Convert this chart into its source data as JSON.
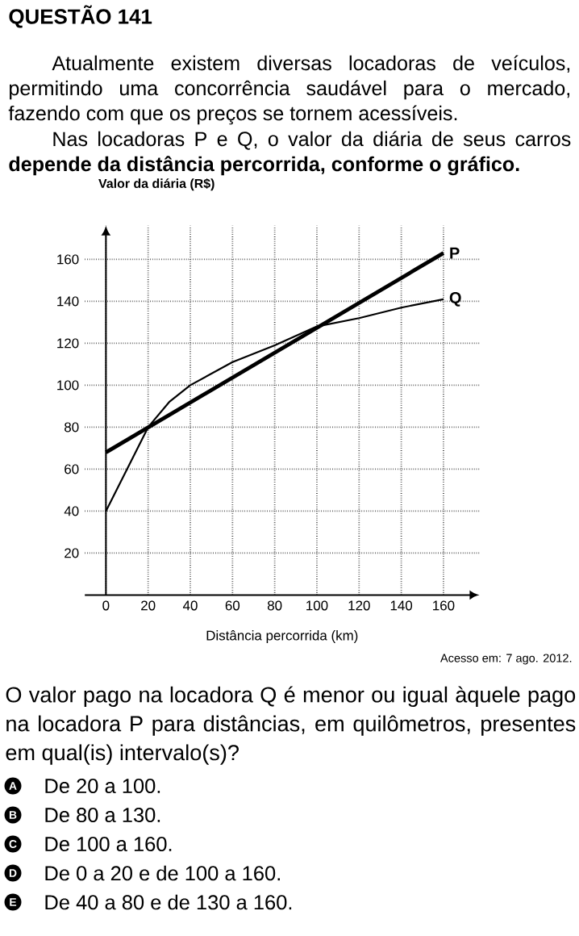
{
  "chart_data": {
    "type": "line",
    "title": "QUESTÃO 141",
    "xlabel": "Distância percorrida (km)",
    "ylabel": "Valor da diária (R$)",
    "xlim": [
      -10,
      177
    ],
    "ylim": [
      0,
      176
    ],
    "xticks": [
      0,
      20,
      40,
      60,
      80,
      100,
      120,
      140,
      160
    ],
    "yticks": [
      20,
      40,
      60,
      80,
      100,
      120,
      140,
      160
    ],
    "grid": true,
    "series": [
      {
        "name": "P",
        "color": "#000000",
        "x": [
          0,
          160
        ],
        "values": [
          68,
          163
        ]
      },
      {
        "name": "Q",
        "color": "#000000",
        "x": [
          0,
          10,
          20,
          30,
          40,
          60,
          80,
          100,
          120,
          140,
          160
        ],
        "values": [
          40,
          60,
          80,
          92,
          100,
          111,
          119,
          128,
          132,
          137,
          141
        ]
      }
    ],
    "annotations": [
      "Atualmente existem diversas locadoras de veículos, permitindo uma concorrência saudável para o mercado, fazendo com que os preços se tornem acessíveis.",
      "Nas locadoras P e Q, o valor da diária de seus carros **depende da distância percorrida, conforme o gráfico.**",
      "Acesso em: 7 ago. 2012.",
      "O valor pago na locadora Q é menor ou igual àquele pago na locadora P para distâncias, em quilômetros, presentes em qual(is) intervalo(s)?",
      "A",
      "B",
      "C",
      "D",
      "E",
      "De 20 a 100.",
      "De 80 a 130.",
      "De 100 a 160.",
      "De 0 a 20 e de 100 a 160.",
      "De 40 a 80 e de 130 a 160."
    ]
  }
}
